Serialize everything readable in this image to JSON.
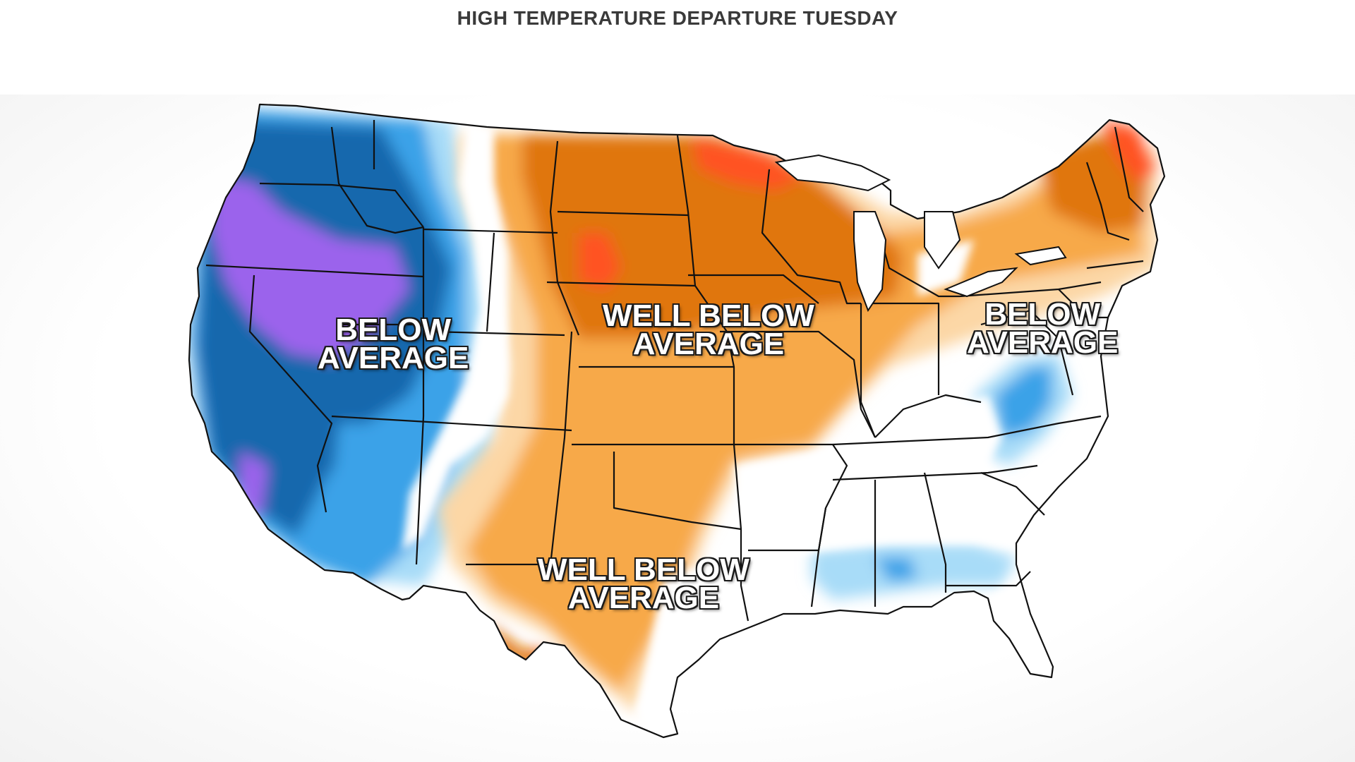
{
  "title": "HIGH TEMPERATURE DEPARTURE  TUESDAY",
  "colors": {
    "background": "#ffffff",
    "land_neutral": "#ffffff",
    "state_borders": "#111111",
    "cold_light": "#a8dcf8",
    "cold_medium": "#3aa2e8",
    "cold_dark": "#1467ad",
    "cold_extreme": "#9b63ec",
    "warm_light": "#fcd7a6",
    "warm_medium": "#f7a94a",
    "warm_dark": "#e0760e",
    "warm_extreme": "#ff5321"
  },
  "labels": {
    "west": [
      "BELOW",
      "AVERAGE"
    ],
    "plains": [
      "WELL BELOW",
      "AVERAGE"
    ],
    "texas": [
      "WELL BELOW",
      "AVERAGE"
    ],
    "east": [
      "BELOW",
      "AVERAGE"
    ]
  }
}
